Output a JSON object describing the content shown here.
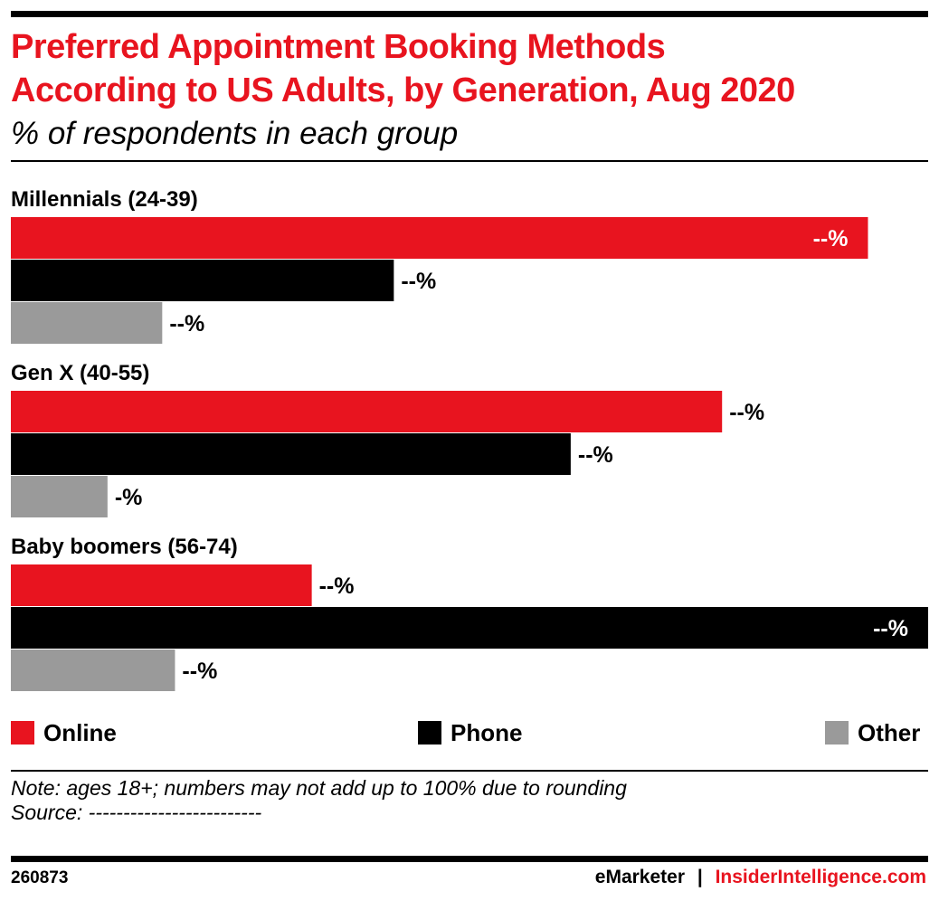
{
  "header": {
    "title_line1": "Preferred Appointment Booking Methods",
    "title_line2": "According to US Adults, by Generation, Aug 2020",
    "subtitle": "% of respondents in each group"
  },
  "colors": {
    "online": "#e8141f",
    "phone": "#000000",
    "other": "#9a9a9a",
    "accent": "#e8141f"
  },
  "chart_data": {
    "type": "bar",
    "orientation": "horizontal",
    "categories": [
      "Millennials (24-39)",
      "Gen X (40-55)",
      "Baby boomers (56-74)"
    ],
    "series": [
      {
        "name": "Online",
        "values": [
          47,
          39,
          16.5
        ],
        "labels": [
          "--%",
          "--%",
          "--%"
        ]
      },
      {
        "name": "Phone",
        "values": [
          21,
          30.7,
          50.3
        ],
        "labels": [
          "--%",
          "--%",
          "--%"
        ]
      },
      {
        "name": "Other",
        "values": [
          8.3,
          5.3,
          9
        ],
        "labels": [
          "--%",
          "-%",
          "--%"
        ]
      }
    ],
    "xlim": [
      0,
      50.3
    ],
    "grid": false,
    "legend": "bottom"
  },
  "legend": {
    "online": "Online",
    "phone": "Phone",
    "other": "Other"
  },
  "note": "Note: ages 18+; numbers may not add up to 100% due to rounding",
  "source": "Source: -------------------------",
  "footer": {
    "id": "260873",
    "brand_left": "eMarketer",
    "separator": "|",
    "brand_right": "InsiderIntelligence.com"
  }
}
